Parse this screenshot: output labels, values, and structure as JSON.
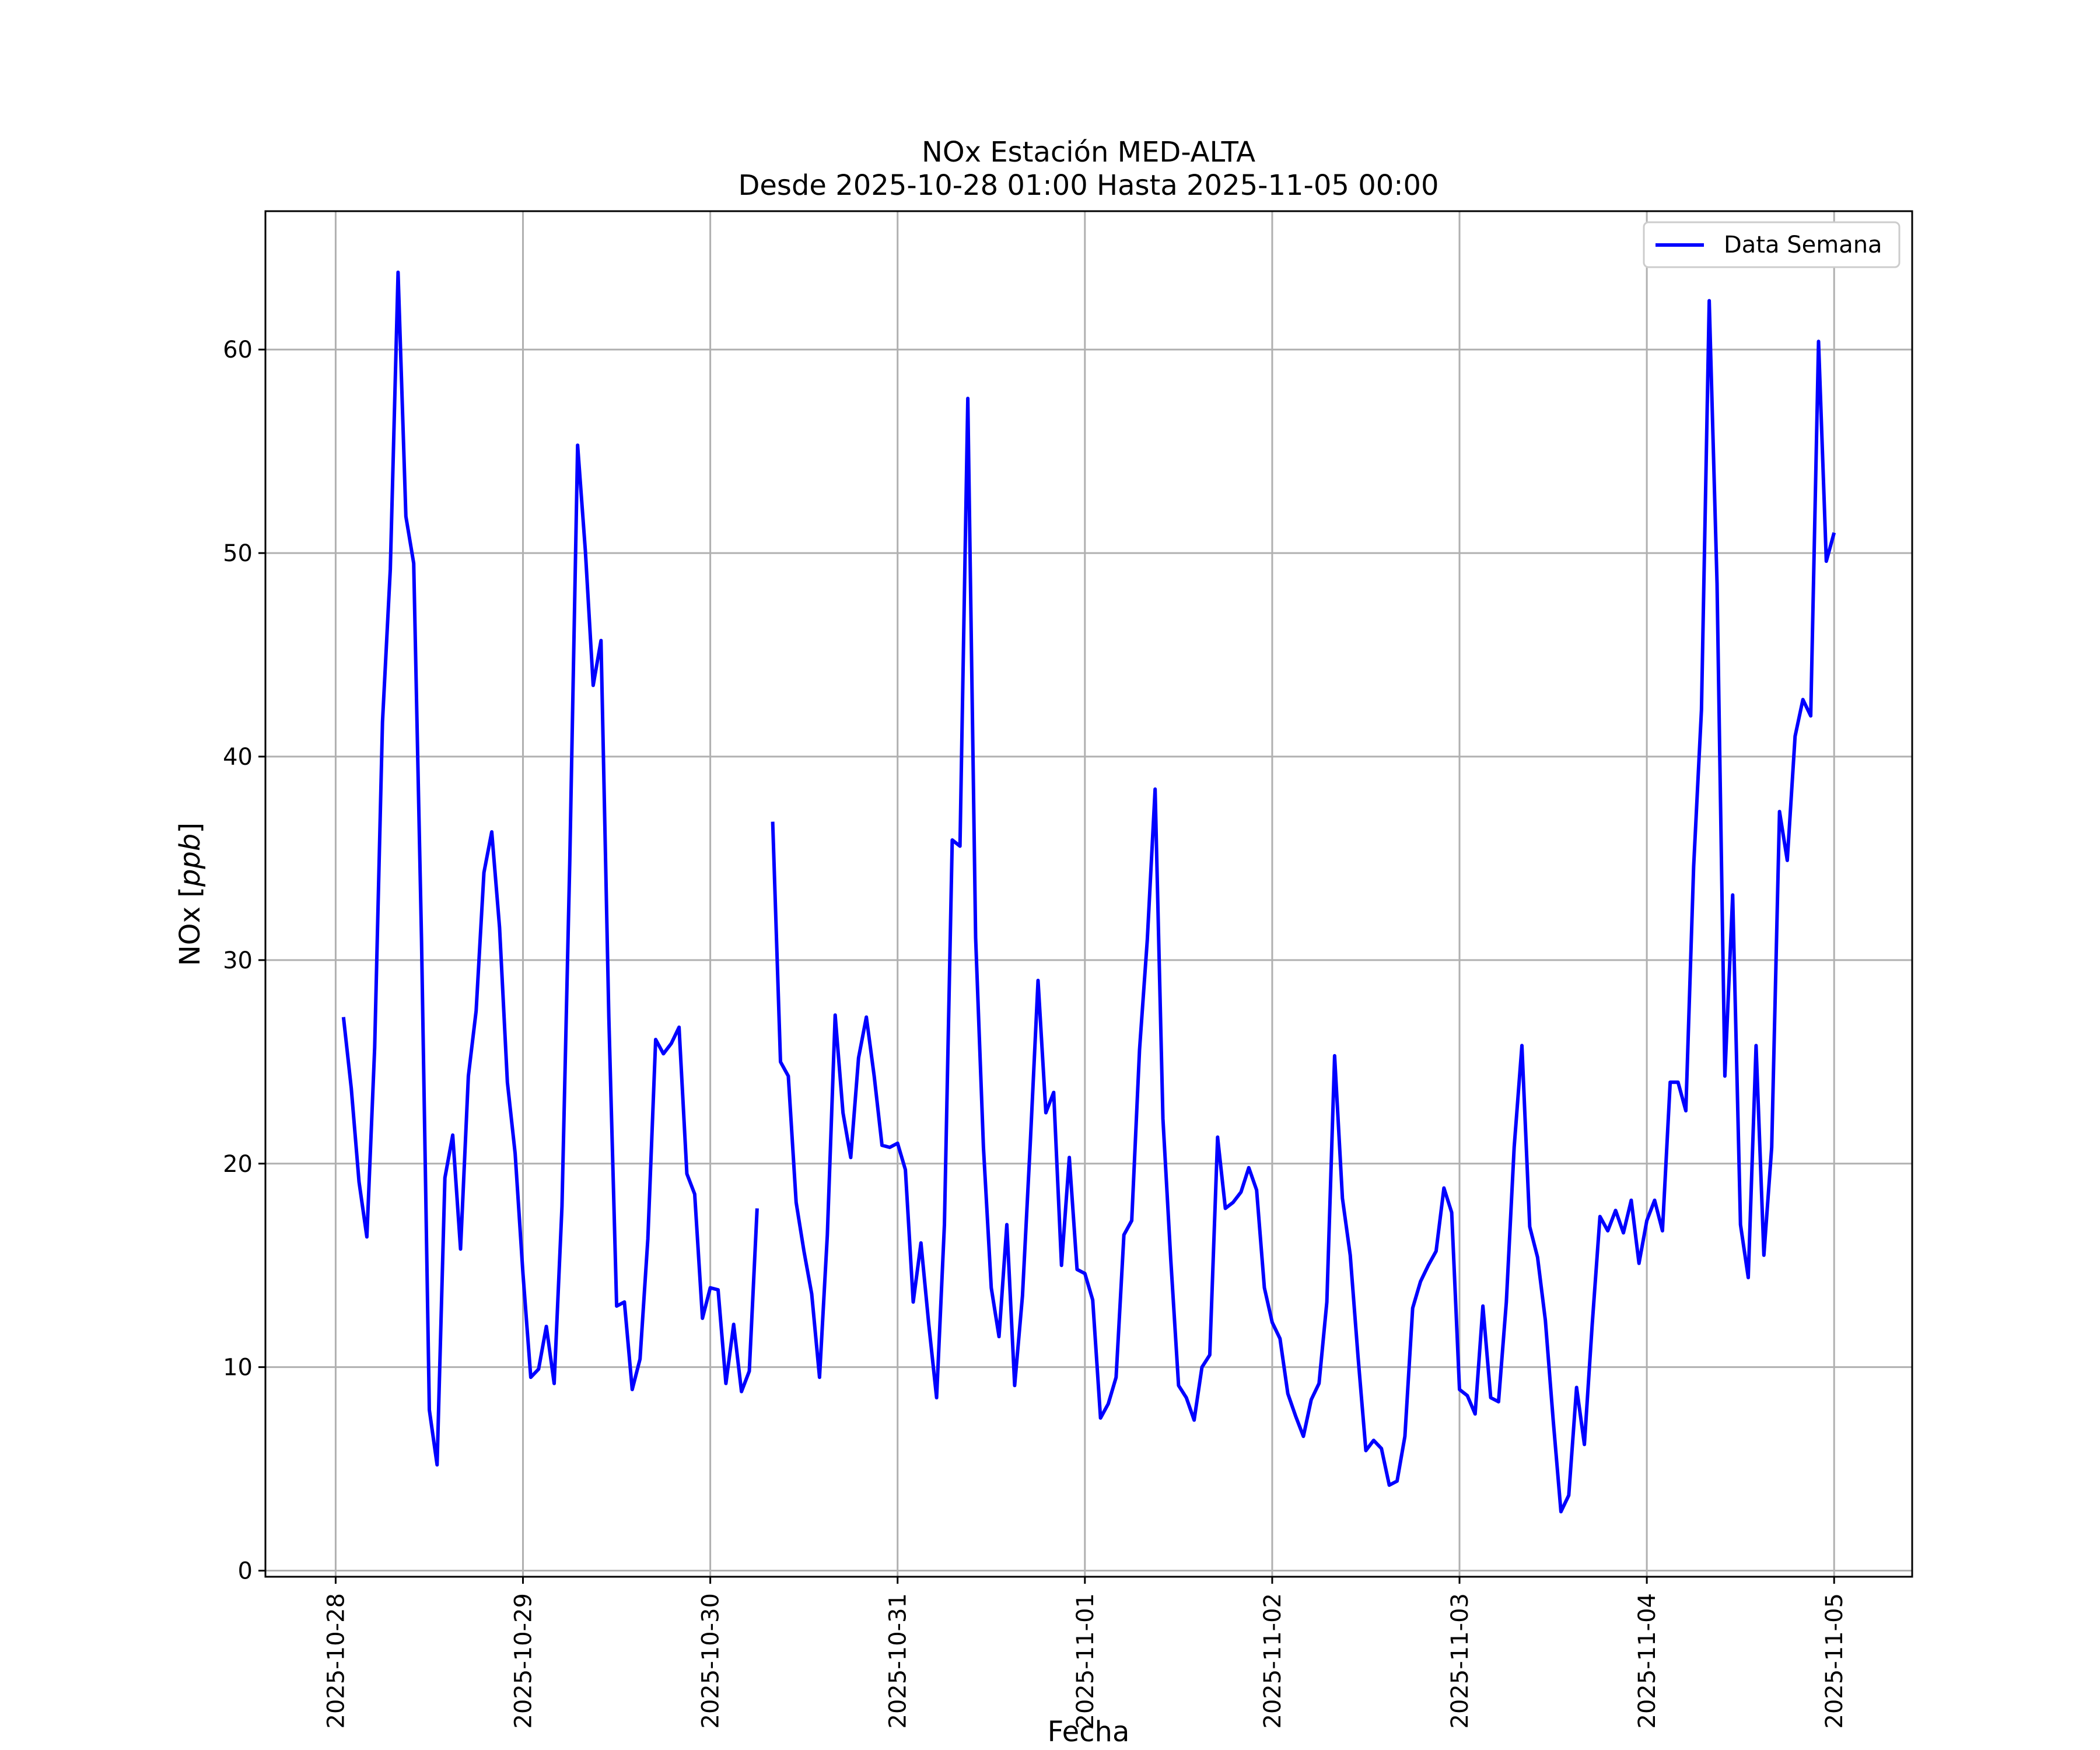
{
  "chart_data": {
    "type": "line",
    "title": "NOx Estación MED-ALTA",
    "subtitle": "Desde 2025-10-28 01:00 Hasta 2025-11-05 00:00",
    "xlabel": "Fecha",
    "ylabel": "NOx [ppb]",
    "ylabel_parts": {
      "plain": "NOx [",
      "italic": "ppb",
      "close": "]"
    },
    "xlim": [
      "2025-10-27 15:00",
      "2025-11-05 10:00"
    ],
    "ylim": [
      -0.3,
      66.8
    ],
    "grid": true,
    "legend": {
      "placement": "top-right",
      "entries": [
        "Data Semana"
      ]
    },
    "colors": {
      "series": "#0000ff",
      "grid": "#b0b0b0"
    },
    "x_tick_labels": [
      "2025-10-28",
      "2025-10-29",
      "2025-10-30",
      "2025-10-31",
      "2025-11-01",
      "2025-11-02",
      "2025-11-03",
      "2025-11-04",
      "2025-11-05"
    ],
    "y_ticks": [
      0,
      10,
      20,
      30,
      40,
      50,
      60
    ],
    "start": "2025-10-28 01:00",
    "interval_hours": 1,
    "series": [
      {
        "name": "Data Semana",
        "values": [
          27.2,
          23.7,
          19.1,
          16.4,
          25.7,
          41.7,
          49.2,
          63.8,
          51.8,
          49.5,
          31.0,
          7.9,
          5.2,
          19.3,
          21.4,
          15.8,
          24.3,
          27.5,
          34.3,
          36.3,
          31.6,
          24.0,
          20.5,
          14.6,
          9.5,
          9.9,
          12.0,
          9.2,
          17.9,
          34.9,
          55.3,
          50.1,
          43.5,
          45.7,
          27.2,
          13.0,
          13.2,
          8.9,
          10.4,
          16.3,
          26.1,
          25.4,
          25.9,
          26.7,
          19.5,
          18.5,
          12.4,
          13.9,
          13.8,
          9.2,
          12.1,
          8.8,
          9.8,
          17.8,
          null,
          36.8,
          25.0,
          24.3,
          18.1,
          15.7,
          13.6,
          9.5,
          16.5,
          27.3,
          22.5,
          20.3,
          25.2,
          27.2,
          24.3,
          20.9,
          20.8,
          21.0,
          19.7,
          13.2,
          16.1,
          12.1,
          8.5,
          17.0,
          35.9,
          35.6,
          57.6,
          31.1,
          20.8,
          13.9,
          11.5,
          17.0,
          9.1,
          13.5,
          21.0,
          29.0,
          22.5,
          23.5,
          15.0,
          20.3,
          14.8,
          14.6,
          13.3,
          7.5,
          8.2,
          9.5,
          16.5,
          17.2,
          25.6,
          31.0,
          38.4,
          22.2,
          15.3,
          9.1,
          8.5,
          7.4,
          10.0,
          10.6,
          21.3,
          17.8,
          18.1,
          18.6,
          19.8,
          18.7,
          13.9,
          12.2,
          11.4,
          8.7,
          7.6,
          6.6,
          8.4,
          9.2,
          13.2,
          25.3,
          18.3,
          15.5,
          10.5,
          5.9,
          6.4,
          6.0,
          4.2,
          4.4,
          6.6,
          12.9,
          14.2,
          15.0,
          15.7,
          18.8,
          17.6,
          8.9,
          8.6,
          7.7,
          13.0,
          8.5,
          8.3,
          13.2,
          20.8,
          25.8,
          16.9,
          15.4,
          12.3,
          7.4,
          2.9,
          3.7,
          9.0,
          6.2,
          12.1,
          17.4,
          16.7,
          17.7,
          16.6,
          18.2,
          15.1,
          17.2,
          18.2,
          16.7,
          24.0,
          24.0,
          22.6,
          34.6,
          42.3,
          62.4,
          48.5,
          24.3,
          33.2,
          17.0,
          14.4,
          25.8,
          15.5,
          20.8,
          37.3,
          34.9,
          41.0,
          42.8,
          42.0,
          60.4,
          49.6,
          51.0
        ]
      }
    ]
  }
}
